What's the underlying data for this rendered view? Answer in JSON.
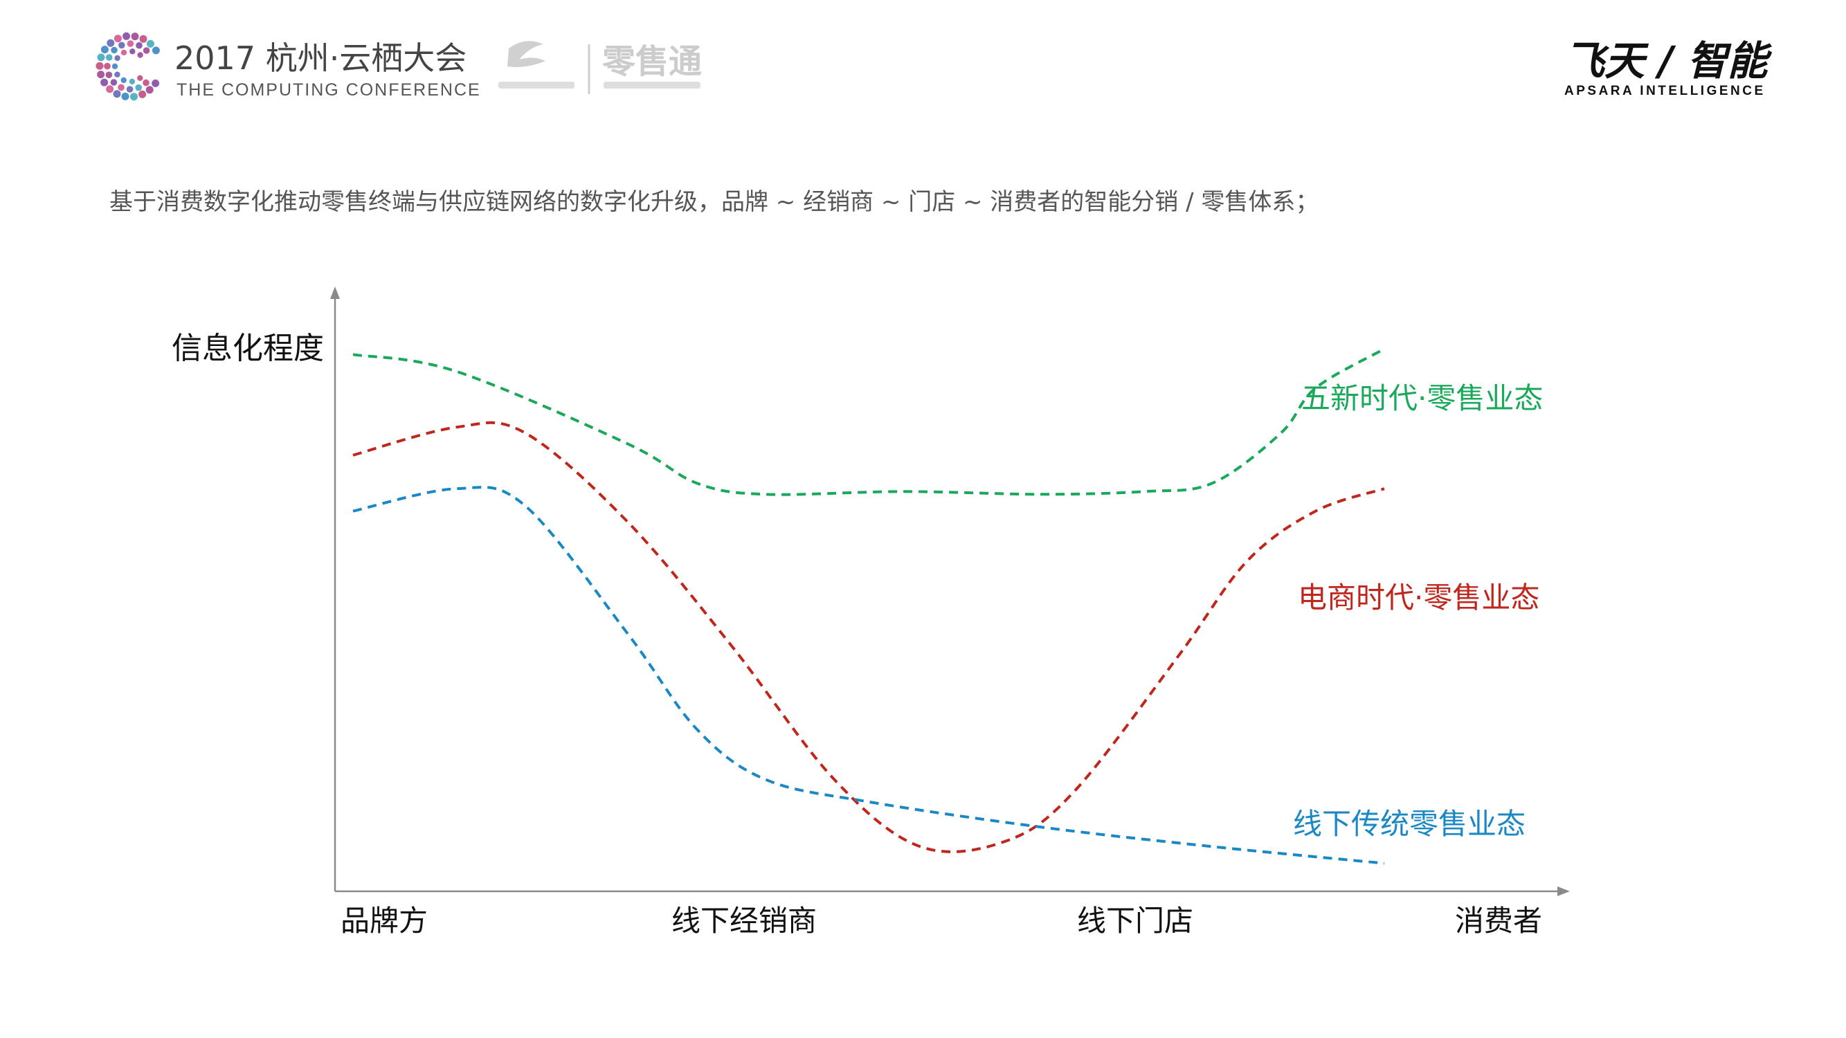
{
  "header": {
    "conference_title": "2017 杭州·云栖大会",
    "conference_subtitle": "THE COMPUTING CONFERENCE",
    "partner_logo_text": "零售通",
    "brand_cn": "飞天 / 智能",
    "brand_en": "APSARA INTELLIGENCE",
    "colors": {
      "brand_green": "#1fb24a",
      "title_gray": "#444444",
      "logo_gray": "#c9c9c9"
    }
  },
  "subtitle": "基于消费数字化推动零售终端与供应链网络的数字化升级，品牌 ~ 经销商 ~ 门店 ~ 消费者的智能分销 / 零售体系；",
  "chart_data": {
    "type": "line",
    "style": "dashed",
    "ylabel": "信息化程度",
    "xlabel": "",
    "categories": [
      "品牌方",
      "线下经销商",
      "线下门店",
      "消费者"
    ],
    "axis_ticks": false,
    "grid": false,
    "series": [
      {
        "name": "五新时代·零售业态",
        "color": "#1aa85a",
        "x": [
          0,
          0.3,
          0.8,
          1.0,
          1.2,
          1.6,
          2.0,
          2.3,
          2.5,
          2.7,
          2.8,
          3.0
        ],
        "values": [
          9.6,
          9.3,
          8.0,
          7.3,
          7.1,
          7.15,
          7.1,
          7.15,
          7.3,
          8.2,
          9.0,
          9.7
        ]
      },
      {
        "name": "电商时代·零售业态",
        "color": "#c0261c",
        "x": [
          0,
          0.3,
          0.5,
          0.8,
          1.1,
          1.4,
          1.65,
          1.9,
          2.1,
          2.4,
          2.6,
          2.8,
          3.0
        ],
        "values": [
          7.8,
          8.3,
          8.2,
          6.6,
          4.4,
          2.0,
          0.8,
          0.9,
          1.8,
          4.2,
          5.9,
          6.8,
          7.2
        ]
      },
      {
        "name": "线下传统零售业态",
        "color": "#1a88c4",
        "x": [
          0,
          0.3,
          0.5,
          0.8,
          1.0,
          1.2,
          1.5,
          2.0,
          2.5,
          3.0
        ],
        "values": [
          6.8,
          7.2,
          6.9,
          4.6,
          2.9,
          2.0,
          1.6,
          1.15,
          0.8,
          0.5
        ]
      }
    ]
  }
}
